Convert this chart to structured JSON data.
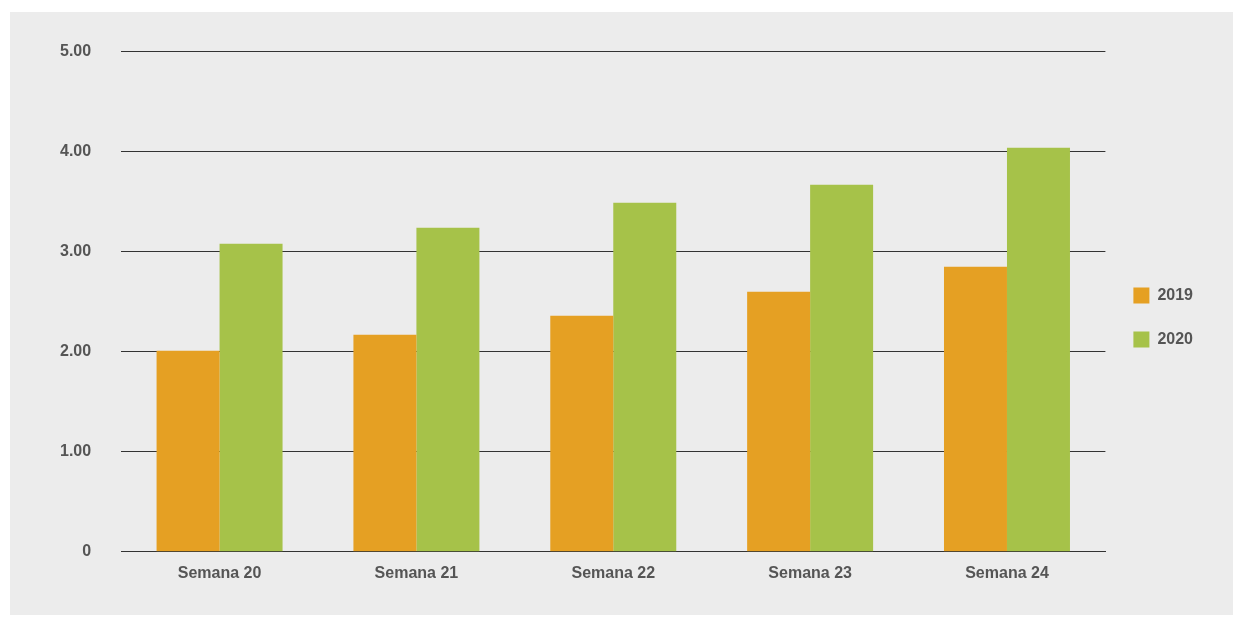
{
  "chart_data": {
    "type": "bar",
    "categories": [
      "Semana 20",
      "Semana 21",
      "Semana 22",
      "Semana 23",
      "Semana 24"
    ],
    "series": [
      {
        "name": "2019",
        "color": "#e5a023",
        "values": [
          2.01,
          2.17,
          2.36,
          2.6,
          2.85
        ]
      },
      {
        "name": "2020",
        "color": "#a6c249",
        "values": [
          3.08,
          3.24,
          3.49,
          3.67,
          4.04
        ]
      }
    ],
    "ylim": [
      0,
      5
    ],
    "yticks": [
      {
        "value": 0,
        "label": "0"
      },
      {
        "value": 1,
        "label": "1.00"
      },
      {
        "value": 2,
        "label": "2.00"
      },
      {
        "value": 3,
        "label": "3.00"
      },
      {
        "value": 4,
        "label": "4.00"
      },
      {
        "value": 5,
        "label": "5.00"
      }
    ],
    "grid": "y",
    "legend": "right"
  }
}
